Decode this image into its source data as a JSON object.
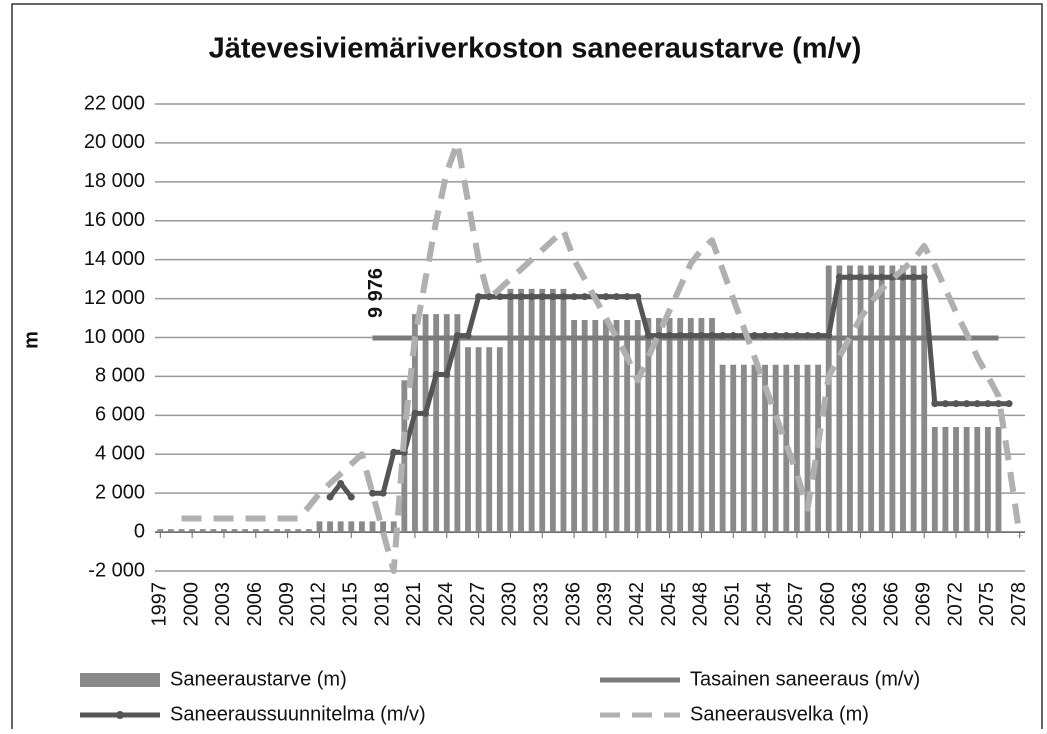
{
  "chart_data": {
    "type": "bar-line",
    "title": "Jätevesiviemäriverkoston saneeraustarve (m/v)",
    "y_label": "m",
    "annotation": "9 976",
    "x": [
      1997,
      1998,
      1999,
      2000,
      2001,
      2002,
      2003,
      2004,
      2005,
      2006,
      2007,
      2008,
      2009,
      2010,
      2011,
      2012,
      2013,
      2014,
      2015,
      2016,
      2017,
      2018,
      2019,
      2020,
      2021,
      2022,
      2023,
      2024,
      2025,
      2026,
      2027,
      2028,
      2029,
      2030,
      2031,
      2032,
      2033,
      2034,
      2035,
      2036,
      2037,
      2038,
      2039,
      2040,
      2041,
      2042,
      2043,
      2044,
      2045,
      2046,
      2047,
      2048,
      2049,
      2050,
      2051,
      2052,
      2053,
      2054,
      2055,
      2056,
      2057,
      2058,
      2059,
      2060,
      2061,
      2062,
      2063,
      2064,
      2065,
      2066,
      2067,
      2068,
      2069,
      2070,
      2071,
      2072,
      2073,
      2074,
      2075,
      2076,
      2077,
      2078
    ],
    "xlim": [
      1996.5,
      2078.5
    ],
    "xticks": [
      1997,
      2000,
      2003,
      2006,
      2009,
      2012,
      2015,
      2018,
      2021,
      2024,
      2027,
      2030,
      2033,
      2036,
      2039,
      2042,
      2045,
      2048,
      2051,
      2054,
      2057,
      2060,
      2063,
      2066,
      2069,
      2072,
      2075,
      2078
    ],
    "ylim": [
      -2000,
      22000
    ],
    "yticks": [
      {
        "value": -2000,
        "label": "-2 000"
      },
      0,
      {
        "value": 2000,
        "label": "2 000"
      },
      {
        "value": 4000,
        "label": "4 000"
      },
      {
        "value": 6000,
        "label": "6 000"
      },
      {
        "value": 8000,
        "label": "8 000"
      },
      {
        "value": 10000,
        "label": "10 000"
      },
      {
        "value": 12000,
        "label": "12 000"
      },
      {
        "value": 14000,
        "label": "14 000"
      },
      {
        "value": 16000,
        "label": "16 000"
      },
      {
        "value": 18000,
        "label": "18 000"
      },
      {
        "value": 20000,
        "label": "20 000"
      },
      {
        "value": 22000,
        "label": "22 000"
      }
    ],
    "grid": true,
    "legend": "bottom",
    "series": [
      {
        "name": "Saneeraustarve (m)",
        "kind": "bar",
        "color": "#8a8a8a",
        "values": [
          150,
          150,
          150,
          150,
          150,
          150,
          150,
          150,
          150,
          150,
          150,
          150,
          150,
          150,
          150,
          550,
          550,
          550,
          550,
          550,
          550,
          550,
          550,
          7800,
          11200,
          11200,
          11200,
          11200,
          11200,
          9500,
          9500,
          9500,
          9500,
          12500,
          12500,
          12500,
          12500,
          12500,
          12500,
          10900,
          10900,
          10900,
          10900,
          10900,
          10900,
          10900,
          11000,
          11000,
          11000,
          11000,
          11000,
          11000,
          11000,
          8600,
          8600,
          8600,
          8600,
          8600,
          8600,
          8600,
          8600,
          8600,
          8600,
          13700,
          13700,
          13700,
          13700,
          13700,
          13700,
          13700,
          13700,
          13700,
          13700,
          5400,
          5400,
          5400,
          5400,
          5400,
          5400,
          5400,
          0,
          0
        ]
      },
      {
        "name": "Tasainen saneeraus (m/v)",
        "kind": "line",
        "color": "#7a7a7a",
        "values": [
          null,
          null,
          null,
          null,
          null,
          null,
          null,
          null,
          null,
          null,
          null,
          null,
          null,
          null,
          null,
          null,
          null,
          null,
          null,
          null,
          9976,
          9976,
          9976,
          9976,
          9976,
          9976,
          9976,
          9976,
          9976,
          9976,
          9976,
          9976,
          9976,
          9976,
          9976,
          9976,
          9976,
          9976,
          9976,
          9976,
          9976,
          9976,
          9976,
          9976,
          9976,
          9976,
          9976,
          9976,
          9976,
          9976,
          9976,
          9976,
          9976,
          9976,
          9976,
          9976,
          9976,
          9976,
          9976,
          9976,
          9976,
          9976,
          9976,
          9976,
          9976,
          9976,
          9976,
          9976,
          9976,
          9976,
          9976,
          9976,
          9976,
          9976,
          9976,
          9976,
          9976,
          9976,
          9976,
          9976,
          null,
          null
        ]
      },
      {
        "name": "Saneeraussuunnitelma (m/v)",
        "kind": "line-dots",
        "color": "#555555",
        "values": [
          null,
          null,
          null,
          null,
          null,
          null,
          null,
          null,
          null,
          null,
          null,
          null,
          null,
          null,
          null,
          null,
          1800,
          2500,
          1800,
          null,
          2000,
          2000,
          4100,
          4100,
          6100,
          6100,
          8100,
          8100,
          10100,
          10100,
          12100,
          12100,
          12100,
          12100,
          12100,
          12100,
          12100,
          12100,
          12100,
          12100,
          12100,
          12100,
          12100,
          12100,
          12100,
          12100,
          10100,
          10100,
          10100,
          10100,
          10100,
          10100,
          10100,
          10100,
          10100,
          10100,
          10100,
          10100,
          10100,
          10100,
          10100,
          10100,
          10100,
          10100,
          13100,
          13100,
          13100,
          13100,
          13100,
          13100,
          13100,
          13100,
          13100,
          6600,
          6600,
          6600,
          6600,
          6600,
          6600,
          6600,
          6600,
          null
        ]
      },
      {
        "name": "Saneerausvelka (m)",
        "kind": "dashed",
        "color": "#b0b0b0",
        "values": [
          null,
          null,
          700,
          700,
          700,
          700,
          700,
          700,
          700,
          700,
          700,
          700,
          700,
          700,
          1300,
          2000,
          2500,
          3000,
          3500,
          4000,
          2000,
          0,
          -2000,
          5000,
          10000,
          13000,
          16000,
          18500,
          20000,
          17000,
          14000,
          12000,
          12500,
          13000,
          13500,
          14000,
          14500,
          15000,
          15500,
          14000,
          13000,
          12000,
          11000,
          10000,
          9000,
          7800,
          9000,
          10200,
          11400,
          12600,
          13800,
          14500,
          15000,
          13500,
          12000,
          10500,
          9000,
          7500,
          6000,
          4500,
          3000,
          1200,
          4500,
          8000,
          9000,
          10000,
          11000,
          11800,
          12500,
          13000,
          13500,
          14000,
          14700,
          13700,
          12500,
          11300,
          10200,
          9000,
          8000,
          7000,
          3500,
          -200
        ]
      }
    ]
  }
}
